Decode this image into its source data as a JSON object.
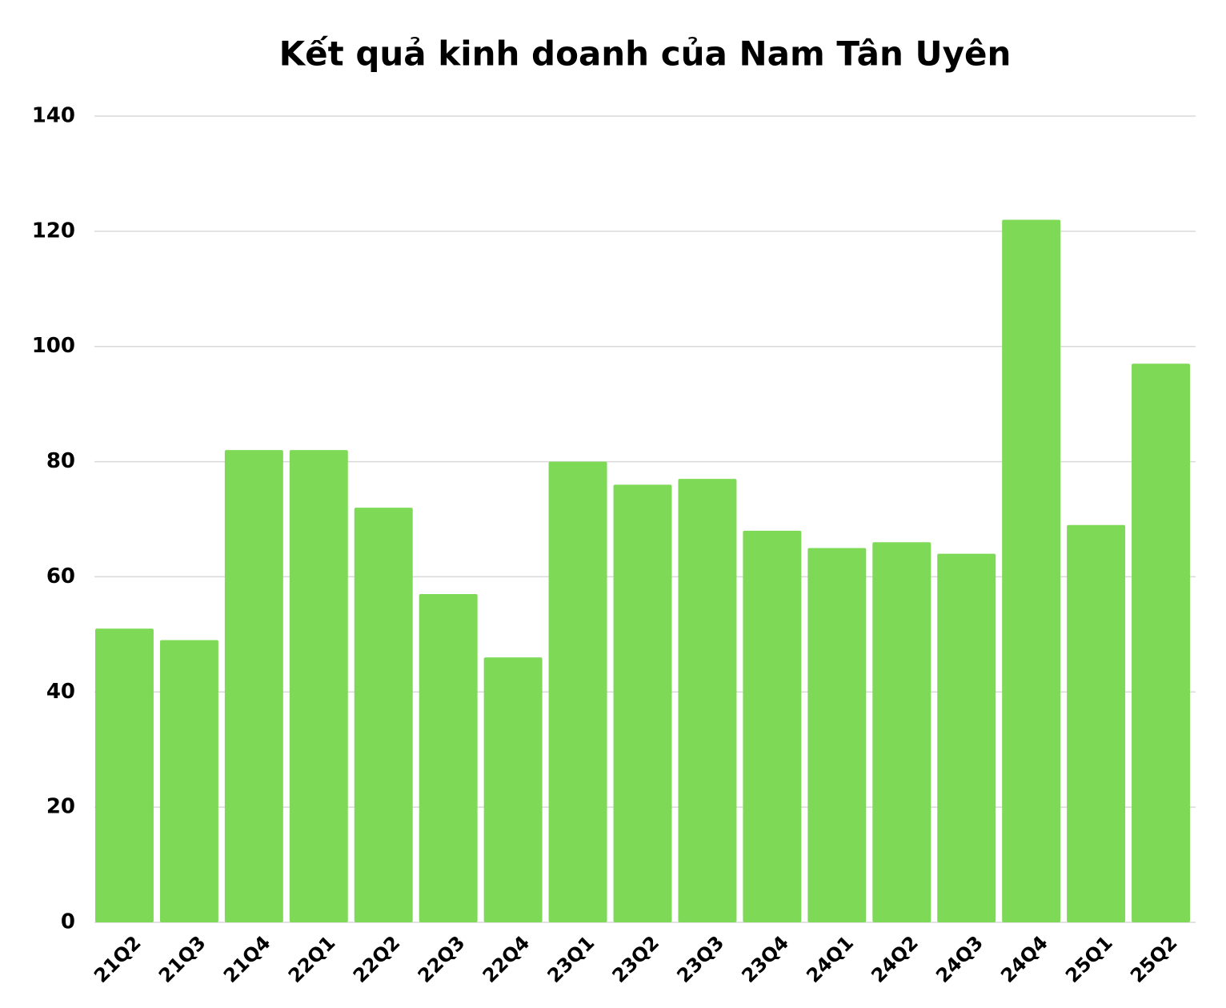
{
  "chart_data": {
    "type": "bar",
    "title": "Kết quả kinh doanh của Nam Tân Uyên",
    "categories": [
      "21Q2",
      "21Q3",
      "21Q4",
      "22Q1",
      "22Q2",
      "22Q3",
      "22Q4",
      "23Q1",
      "23Q2",
      "23Q3",
      "23Q4",
      "24Q1",
      "24Q2",
      "24Q3",
      "24Q4",
      "25Q1",
      "25Q2"
    ],
    "values": [
      51,
      49,
      82,
      82,
      72,
      57,
      46,
      80,
      76,
      77,
      68,
      65,
      66,
      64,
      122,
      69,
      97
    ],
    "color": "#7ed957",
    "ylim": [
      0,
      140
    ],
    "yticks": [
      0,
      20,
      40,
      60,
      80,
      100,
      120,
      140
    ],
    "grid": true
  }
}
